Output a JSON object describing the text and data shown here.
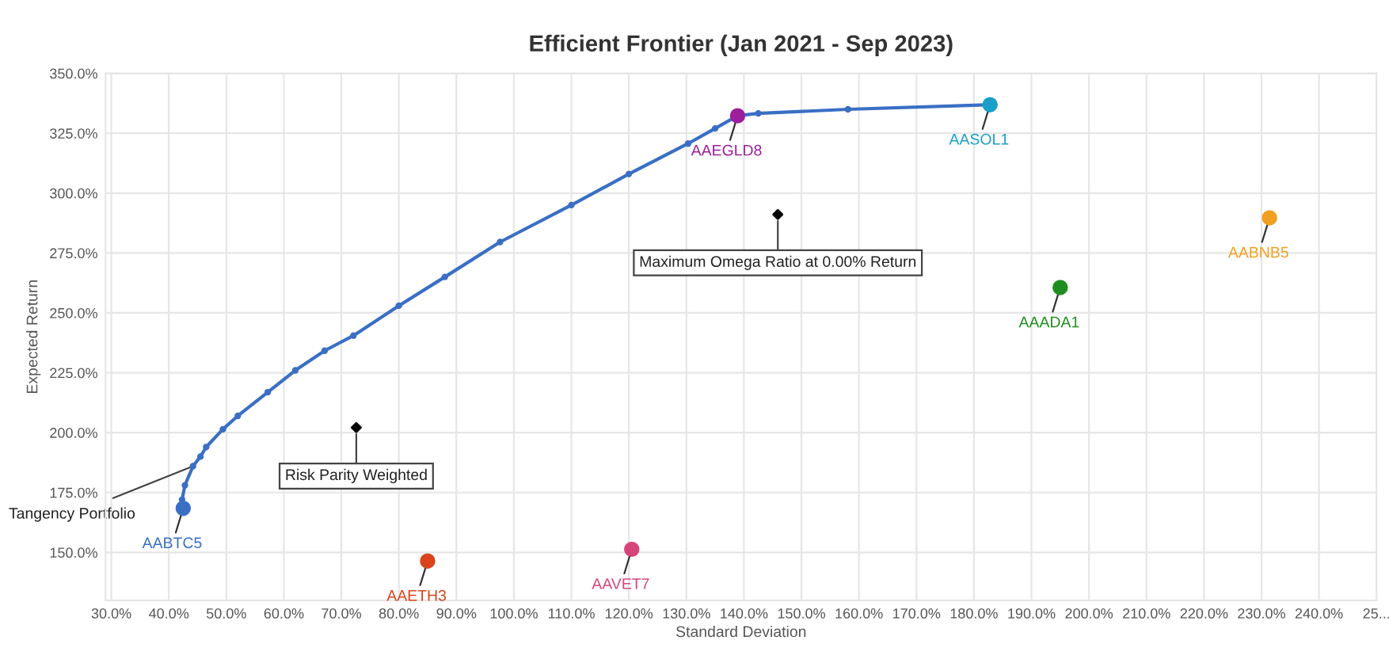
{
  "chart_data": {
    "type": "scatter",
    "title": "Efficient Frontier (Jan 2021 - Sep 2023)",
    "xlabel": "Standard Deviation",
    "ylabel": "Expected Return",
    "xlim": [
      29,
      250
    ],
    "ylim": [
      130,
      350
    ],
    "xticks": [
      {
        "value": 30,
        "label": "30.0%"
      },
      {
        "value": 40,
        "label": "40.0%"
      },
      {
        "value": 50,
        "label": "50.0%"
      },
      {
        "value": 60,
        "label": "60.0%"
      },
      {
        "value": 70,
        "label": "70.0%"
      },
      {
        "value": 80,
        "label": "80.0%"
      },
      {
        "value": 90,
        "label": "90.0%"
      },
      {
        "value": 100,
        "label": "100.0%"
      },
      {
        "value": 110,
        "label": "110.0%"
      },
      {
        "value": 120,
        "label": "120.0%"
      },
      {
        "value": 130,
        "label": "130.0%"
      },
      {
        "value": 140,
        "label": "140.0%"
      },
      {
        "value": 150,
        "label": "150.0%"
      },
      {
        "value": 160,
        "label": "160.0%"
      },
      {
        "value": 170,
        "label": "170.0%"
      },
      {
        "value": 180,
        "label": "180.0%"
      },
      {
        "value": 190,
        "label": "190.0%"
      },
      {
        "value": 200,
        "label": "200.0%"
      },
      {
        "value": 210,
        "label": "210.0%"
      },
      {
        "value": 220,
        "label": "220.0%"
      },
      {
        "value": 230,
        "label": "230.0%"
      },
      {
        "value": 240,
        "label": "240.0%"
      },
      {
        "value": 250,
        "label": "25..."
      }
    ],
    "yticks": [
      {
        "value": 150,
        "label": "150.0%"
      },
      {
        "value": 175,
        "label": "175.0%"
      },
      {
        "value": 200,
        "label": "200.0%"
      },
      {
        "value": 225,
        "label": "225.0%"
      },
      {
        "value": 250,
        "label": "250.0%"
      },
      {
        "value": 275,
        "label": "275.0%"
      },
      {
        "value": 300,
        "label": "300.0%"
      },
      {
        "value": 325,
        "label": "325.0%"
      },
      {
        "value": 350,
        "label": "350.0%"
      }
    ],
    "grid": true,
    "legend": false,
    "series": [
      {
        "type": "line",
        "marker": "circle",
        "color": "#3a6fc4",
        "x": [
          42.5,
          42.3,
          42.8,
          44.2,
          45.5,
          46.5,
          49.4,
          52.0,
          57.2,
          62.0,
          67.1,
          72.1,
          80.0,
          88.0,
          97.6,
          110.0,
          120.0,
          130.3,
          135.0,
          138.9,
          142.5,
          158.1,
          182.8
        ],
        "values": [
          168.4,
          172.0,
          178.0,
          186.0,
          190.0,
          194.0,
          201.4,
          207.0,
          216.9,
          226.0,
          234.2,
          240.5,
          253.0,
          265.0,
          279.6,
          295.0,
          308.0,
          320.7,
          327.0,
          332.3,
          333.3,
          335.0,
          336.9
        ]
      },
      {
        "name": "AABTC5",
        "color": "#3a6fc4",
        "x": [
          42.5
        ],
        "values": [
          168.4
        ]
      },
      {
        "name": "AAETH3",
        "color": "#d9441c",
        "x": [
          85.0
        ],
        "values": [
          146.4
        ]
      },
      {
        "name": "AAVET7",
        "color": "#d6457a",
        "x": [
          120.5
        ],
        "values": [
          151.3
        ]
      },
      {
        "name": "AAEGLD8",
        "color": "#9c1f9c",
        "x": [
          138.9
        ],
        "values": [
          332.3
        ]
      },
      {
        "name": "AASOL1",
        "color": "#1aa0c8",
        "x": [
          182.8
        ],
        "values": [
          336.9
        ]
      },
      {
        "name": "AAADA1",
        "color": "#1e8f1e",
        "x": [
          195.0
        ],
        "values": [
          260.6
        ]
      },
      {
        "name": "AABNB5",
        "color": "#f0a020",
        "x": [
          231.4
        ],
        "values": [
          289.7
        ]
      }
    ],
    "annotations": [
      {
        "text": "Tangency Portfolio",
        "x": 44.2,
        "y": 186.0
      },
      {
        "text": "Risk Parity Weighted",
        "x": 72.6,
        "y": 202.1
      },
      {
        "text": "Maximum Omega Ratio at 0.00% Return",
        "x": 145.9,
        "y": 291.1
      }
    ]
  }
}
